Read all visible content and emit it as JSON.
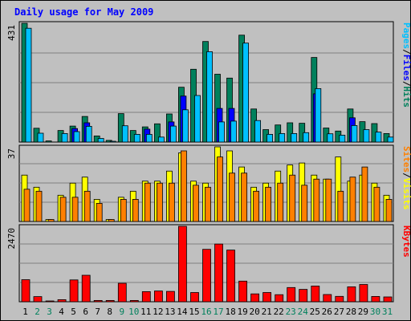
{
  "chart_data": {
    "type": "bar",
    "title": "Daily usage for May 2009",
    "categories": [
      "1",
      "2",
      "3",
      "4",
      "5",
      "6",
      "7",
      "8",
      "9",
      "10",
      "11",
      "12",
      "13",
      "14",
      "15",
      "16",
      "17",
      "18",
      "19",
      "20",
      "21",
      "22",
      "23",
      "24",
      "25",
      "26",
      "27",
      "28",
      "29",
      "30",
      "31"
    ],
    "weekend_days": [
      "2",
      "3",
      "9",
      "10",
      "16",
      "17",
      "23",
      "24",
      "30",
      "31"
    ],
    "panels": [
      {
        "name": "hits",
        "max_label": "431",
        "ylim": [
          0,
          431
        ],
        "legend": [
          "Pages",
          "/",
          "Files",
          "/",
          "Hits"
        ],
        "series": [
          {
            "name": "Hits",
            "color": "#00805c",
            "values": [
              431,
              50,
              4,
              42,
              58,
              93,
              22,
              6,
              103,
              42,
              55,
              66,
              102,
              199,
              264,
              365,
              246,
              232,
              388,
              120,
              45,
              62,
              70,
              68,
              307,
              51,
              40,
              120,
              74,
              67,
              31
            ]
          },
          {
            "name": "Files",
            "color": "#0000ff",
            "values": [
              0,
              0,
              0,
              0,
              49,
              70,
              0,
              0,
              0,
              0,
              47,
              0,
              73,
              167,
              0,
              0,
              122,
              122,
              0,
              0,
              0,
              0,
              0,
              0,
              175,
              0,
              0,
              88,
              0,
              0,
              0
            ]
          },
          {
            "name": "Pages",
            "color": "#00c0ff",
            "values": [
              413,
              32,
              0,
              31,
              38,
              57,
              13,
              3,
              59,
              28,
              28,
              18,
              58,
              117,
              169,
              328,
              73,
              76,
              359,
              78,
              28,
              31,
              31,
              34,
              194,
              30,
              25,
              60,
              45,
              36,
              18
            ]
          }
        ]
      },
      {
        "name": "visits",
        "max_label": "37",
        "ylim": [
          0,
          37
        ],
        "legend": [
          "Sites",
          "/",
          "Visits"
        ],
        "series": [
          {
            "name": "Visits",
            "color": "#ffff00",
            "values": [
              23,
              17,
              1,
              13,
              19,
              22,
              11,
              1,
              12,
              15,
              20,
              20,
              25,
              34,
              20,
              19,
              37,
              35,
              27,
              17,
              19,
              25,
              28,
              29,
              23,
              21,
              32,
              20,
              23,
              19,
              13
            ]
          },
          {
            "name": "Sites",
            "color": "#ff8000",
            "values": [
              16,
              15,
              1,
              12,
              12,
              15,
              9,
              1,
              11,
              11,
              19,
              19,
              19,
              35,
              18,
              17,
              32,
              24,
              24,
              15,
              17,
              19,
              23,
              18,
              21,
              21,
              15,
              22,
              27,
              17,
              11
            ]
          }
        ]
      },
      {
        "name": "kbytes",
        "max_label": "2470",
        "ylim": [
          0,
          2470
        ],
        "legend": [
          "KBytes"
        ],
        "series": [
          {
            "name": "KBytes",
            "color": "#ff0000",
            "values": [
              723,
              167,
              18,
              68,
              716,
              866,
              43,
              43,
              605,
              43,
              330,
              353,
              340,
              2470,
              302,
              1716,
              1890,
              1692,
              674,
              258,
              303,
              230,
              466,
              405,
              516,
              237,
              176,
              488,
              564,
              173,
              158
            ]
          }
        ]
      }
    ],
    "legend_colors": {
      "Pages": "#00c0ff",
      "Files": "#0000ff",
      "Hits": "#00805c",
      "Sites": "#ff8000",
      "Visits": "#ffff00",
      "KBytes": "#ff0000"
    }
  }
}
